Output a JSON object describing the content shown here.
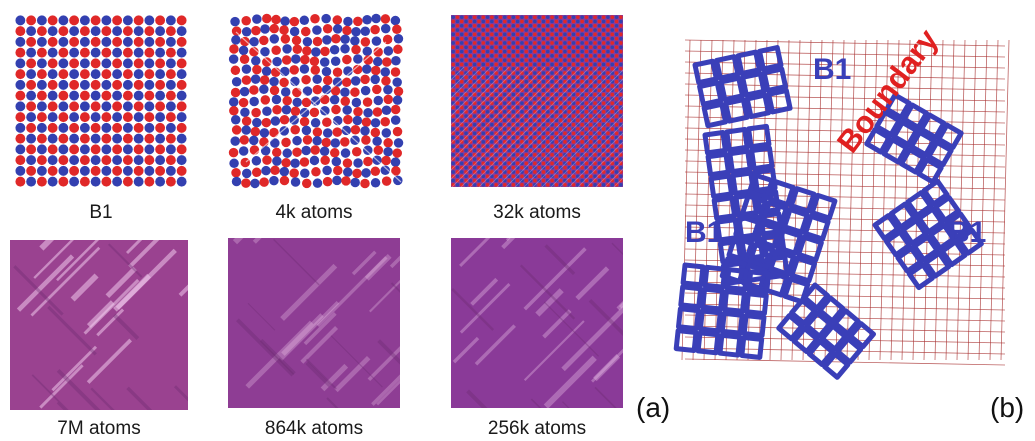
{
  "panel_a": {
    "label": "(a)",
    "captions": [
      "B1",
      "4k atoms",
      "32k atoms",
      "7M atoms",
      "864k atoms",
      "256k atoms"
    ]
  },
  "panel_b": {
    "label": "(b)",
    "region_labels": [
      "B1",
      "B1",
      "B1"
    ],
    "boundary_label": "Boundary"
  },
  "colors": {
    "atom_blue": "#3340b0",
    "atom_red": "#e02828",
    "bond_red": "#a83030",
    "bond_blue": "#3a3fb8",
    "surface_magenta": "#9b3f8f"
  }
}
